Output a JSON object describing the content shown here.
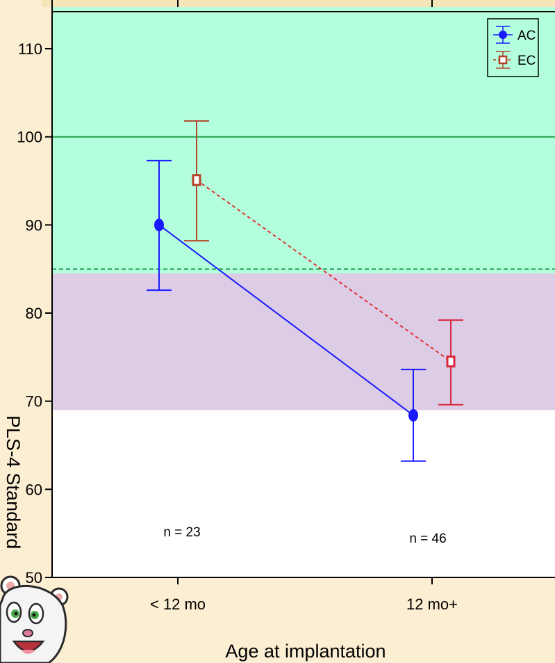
{
  "chart_data": {
    "type": "line",
    "title": "",
    "xlabel": "Age at implantation",
    "ylabel": "PLS-4 Standard",
    "categories": [
      "< 12 mo",
      "12 mo+"
    ],
    "ylim": [
      50,
      115
    ],
    "yticks": [
      50,
      60,
      70,
      80,
      90,
      100,
      110
    ],
    "grid": false,
    "legend": "top-right",
    "series": [
      {
        "name": "AC",
        "values": [
          90,
          68.4
        ],
        "lower": [
          82.6,
          63.2
        ],
        "upper": [
          97.3,
          73.6
        ],
        "color": "#1a1aff",
        "marker": "circle",
        "line_style": "solid"
      },
      {
        "name": "EC",
        "values": [
          95.1,
          74.5
        ],
        "lower": [
          88.2,
          69.6
        ],
        "upper": [
          101.8,
          79.2
        ],
        "color": "#b5432a",
        "line_color": "#e03030",
        "marker": "square",
        "line_style": "dashed"
      }
    ],
    "annotations": [
      "n = 23",
      "n = 46"
    ],
    "bands": [
      {
        "from": 84.5,
        "to": 115,
        "color": "#b3ffdd"
      },
      {
        "from": 69,
        "to": 84.5,
        "color": "#dccce6"
      }
    ],
    "reference_lines": [
      {
        "y": 100,
        "color": "#22a04a",
        "style": "solid"
      },
      {
        "y": 85,
        "color": "#22a04a",
        "style": "dashed"
      }
    ]
  }
}
